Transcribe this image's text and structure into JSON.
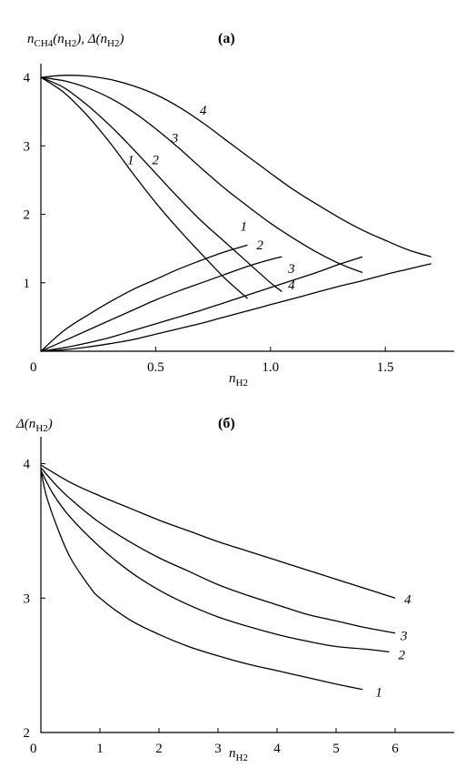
{
  "chart_data": [
    {
      "type": "line",
      "panel_label": "(a)",
      "ylabel": {
        "main": "n",
        "sub1": "CH4",
        "paren1": "(n",
        "sub2": "H2",
        "close1": "), Δ(n",
        "sub3": "H2",
        "close2": ")"
      },
      "xlabel": {
        "main": "n",
        "sub": "H2"
      },
      "xlim": [
        0,
        1.8
      ],
      "ylim": [
        0,
        4.2
      ],
      "xticks": [
        {
          "value": 0,
          "label": "0"
        },
        {
          "value": 0.5,
          "label": "0.5"
        },
        {
          "value": 1.0,
          "label": "1.0"
        },
        {
          "value": 1.5,
          "label": "1.5"
        }
      ],
      "yticks": [
        {
          "value": 1,
          "label": "1"
        },
        {
          "value": 2,
          "label": "2"
        },
        {
          "value": 3,
          "label": "3"
        },
        {
          "value": 4,
          "label": "4"
        }
      ],
      "series": [
        {
          "name": "1",
          "group": "decreasing",
          "x": [
            0,
            0.1,
            0.2,
            0.3,
            0.4,
            0.5,
            0.6,
            0.7,
            0.8,
            0.9
          ],
          "y": [
            4.0,
            3.78,
            3.45,
            3.05,
            2.6,
            2.17,
            1.78,
            1.42,
            1.07,
            0.77
          ]
        },
        {
          "name": "2",
          "group": "decreasing",
          "x": [
            0,
            0.1,
            0.2,
            0.3,
            0.4,
            0.5,
            0.6,
            0.7,
            0.8,
            0.9,
            1.0,
            1.05
          ],
          "y": [
            4.0,
            3.85,
            3.6,
            3.3,
            2.96,
            2.6,
            2.24,
            1.9,
            1.6,
            1.3,
            1.0,
            0.87
          ]
        },
        {
          "name": "3",
          "group": "decreasing",
          "x": [
            0,
            0.1,
            0.2,
            0.3,
            0.4,
            0.5,
            0.6,
            0.7,
            0.8,
            0.9,
            1.0,
            1.1,
            1.2,
            1.3,
            1.4
          ],
          "y": [
            4.0,
            3.95,
            3.85,
            3.7,
            3.5,
            3.25,
            2.97,
            2.67,
            2.38,
            2.12,
            1.87,
            1.65,
            1.45,
            1.28,
            1.15
          ]
        },
        {
          "name": "4",
          "group": "decreasing",
          "x": [
            0,
            0.1,
            0.2,
            0.3,
            0.4,
            0.5,
            0.6,
            0.7,
            0.8,
            0.9,
            1.0,
            1.1,
            1.2,
            1.3,
            1.4,
            1.5,
            1.6,
            1.7
          ],
          "y": [
            4.0,
            4.03,
            4.02,
            3.97,
            3.88,
            3.75,
            3.57,
            3.35,
            3.1,
            2.85,
            2.6,
            2.36,
            2.15,
            1.95,
            1.77,
            1.62,
            1.48,
            1.38
          ]
        },
        {
          "name": "1",
          "group": "increasing",
          "x": [
            0,
            0.1,
            0.2,
            0.3,
            0.4,
            0.5,
            0.6,
            0.7,
            0.8,
            0.9
          ],
          "y": [
            0,
            0.3,
            0.52,
            0.72,
            0.9,
            1.05,
            1.2,
            1.33,
            1.45,
            1.55
          ]
        },
        {
          "name": "2",
          "group": "increasing",
          "x": [
            0,
            0.1,
            0.2,
            0.3,
            0.4,
            0.5,
            0.6,
            0.7,
            0.8,
            0.9,
            1.0,
            1.05
          ],
          "y": [
            0,
            0.15,
            0.3,
            0.45,
            0.6,
            0.75,
            0.88,
            1.0,
            1.12,
            1.24,
            1.34,
            1.38
          ]
        },
        {
          "name": "3",
          "group": "increasing",
          "x": [
            0,
            0.1,
            0.2,
            0.3,
            0.4,
            0.5,
            0.6,
            0.7,
            0.8,
            0.9,
            1.0,
            1.1,
            1.2,
            1.3,
            1.4
          ],
          "y": [
            0,
            0.05,
            0.12,
            0.2,
            0.3,
            0.4,
            0.5,
            0.6,
            0.71,
            0.82,
            0.93,
            1.04,
            1.15,
            1.27,
            1.38
          ]
        },
        {
          "name": "4",
          "group": "increasing",
          "x": [
            0,
            0.1,
            0.2,
            0.3,
            0.4,
            0.5,
            0.6,
            0.7,
            0.8,
            0.9,
            1.0,
            1.1,
            1.2,
            1.3,
            1.4,
            1.5,
            1.6,
            1.7
          ],
          "y": [
            0,
            0.02,
            0.06,
            0.11,
            0.17,
            0.25,
            0.33,
            0.41,
            0.5,
            0.59,
            0.68,
            0.77,
            0.86,
            0.95,
            1.03,
            1.12,
            1.2,
            1.28
          ]
        }
      ]
    },
    {
      "type": "line",
      "panel_label": "(б)",
      "ylabel": {
        "main": "Δ(n",
        "sub": "H2",
        "close": ")"
      },
      "xlabel": {
        "main": "n",
        "sub": "H2"
      },
      "xlim": [
        0,
        7
      ],
      "ylim": [
        2,
        4.2
      ],
      "xticks": [
        {
          "value": 0,
          "label": "0"
        },
        {
          "value": 1,
          "label": "1"
        },
        {
          "value": 2,
          "label": "2"
        },
        {
          "value": 3,
          "label": "3"
        },
        {
          "value": 4,
          "label": "4"
        },
        {
          "value": 5,
          "label": "5"
        },
        {
          "value": 6,
          "label": "6"
        }
      ],
      "yticks": [
        {
          "value": 2,
          "label": "2"
        },
        {
          "value": 3,
          "label": "3"
        },
        {
          "value": 4,
          "label": "4"
        }
      ],
      "series": [
        {
          "name": "1",
          "x": [
            0,
            0.1,
            0.3,
            0.5,
            0.8,
            1.0,
            1.5,
            2.0,
            2.5,
            3.0,
            3.5,
            4.0,
            4.5,
            5.0,
            5.45
          ],
          "y": [
            3.95,
            3.75,
            3.5,
            3.3,
            3.1,
            3.0,
            2.84,
            2.73,
            2.64,
            2.57,
            2.51,
            2.46,
            2.41,
            2.36,
            2.32
          ]
        },
        {
          "name": "2",
          "x": [
            0,
            0.2,
            0.5,
            1.0,
            1.5,
            2.0,
            2.5,
            3.0,
            3.5,
            4.0,
            4.5,
            5.0,
            5.5,
            5.9
          ],
          "y": [
            3.95,
            3.78,
            3.6,
            3.38,
            3.2,
            3.06,
            2.95,
            2.86,
            2.79,
            2.73,
            2.68,
            2.64,
            2.62,
            2.6
          ]
        },
        {
          "name": "3",
          "x": [
            0,
            0.3,
            0.6,
            1.0,
            1.5,
            2.0,
            2.5,
            3.0,
            3.5,
            4.0,
            4.5,
            5.0,
            5.5,
            6.0
          ],
          "y": [
            3.97,
            3.82,
            3.7,
            3.56,
            3.42,
            3.3,
            3.2,
            3.1,
            3.02,
            2.95,
            2.88,
            2.83,
            2.78,
            2.74
          ]
        },
        {
          "name": "4",
          "x": [
            0,
            0.5,
            1.0,
            1.5,
            2.0,
            2.5,
            3.0,
            3.5,
            4.0,
            4.5,
            5.0,
            5.5,
            6.0
          ],
          "y": [
            3.99,
            3.86,
            3.76,
            3.67,
            3.58,
            3.5,
            3.42,
            3.35,
            3.28,
            3.21,
            3.14,
            3.07,
            3.0
          ]
        }
      ]
    }
  ]
}
